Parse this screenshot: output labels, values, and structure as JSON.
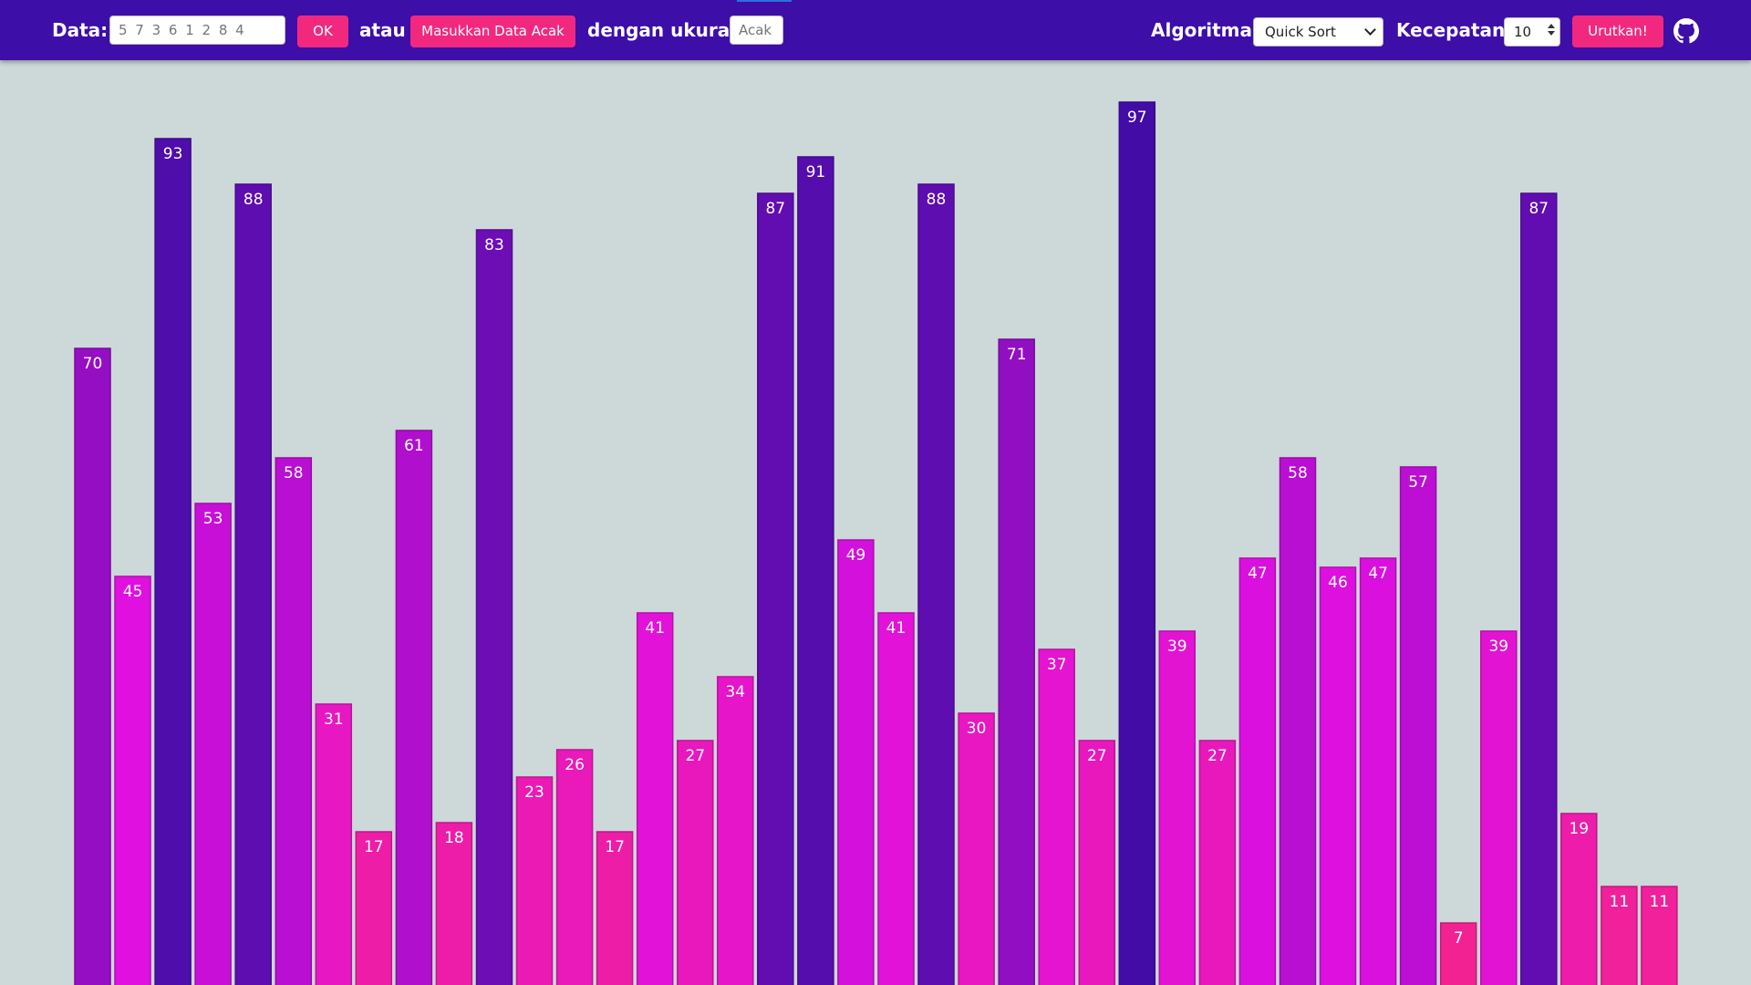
{
  "toolbar": {
    "data_label": "Data:",
    "data_input_placeholder": "5 7 3 6 1 2 8 4",
    "ok_button": "OK",
    "or_label": "atau",
    "random_button": "Masukkan Data Acak",
    "size_label": "dengan ukuran",
    "size_placeholder": "Acak",
    "algorithm_label": "Algoritma:",
    "algorithm_selected": "Quick Sort",
    "speed_label": "Kecepatan:",
    "speed_value": "10",
    "sort_button": "Urutkan!",
    "github_icon": "github-icon"
  },
  "colors": {
    "toolbar_bg": "#3d0ea8",
    "button_bg": "#f2287e",
    "page_bg": "#cdd8d8",
    "bar_low": "#f72585",
    "bar_mid": "#e010e0",
    "bar_high": "#3a0ca3"
  },
  "chart_data": {
    "type": "bar",
    "values": [
      70,
      45,
      93,
      53,
      88,
      58,
      31,
      17,
      61,
      18,
      83,
      23,
      26,
      17,
      41,
      27,
      34,
      87,
      91,
      49,
      41,
      88,
      30,
      71,
      37,
      27,
      97,
      39,
      27,
      47,
      58,
      46,
      47,
      57,
      7,
      39,
      87,
      19,
      11,
      11
    ],
    "ylim": [
      0,
      100
    ],
    "grid": false,
    "data_labels": true
  }
}
